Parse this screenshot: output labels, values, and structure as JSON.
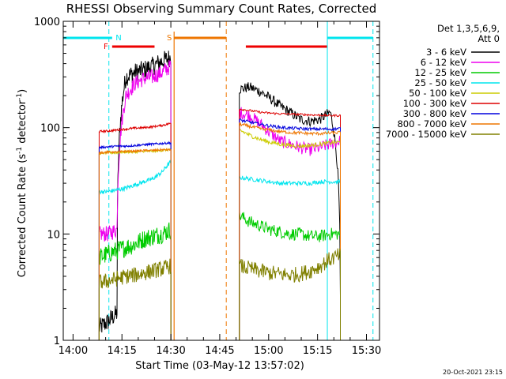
{
  "chart_data": {
    "type": "line",
    "title": "RHESSI Observing Summary Count Rates, Corrected",
    "xlabel": "Start Time (03-May-12 13:57:02)",
    "ylabel_main": "Corrected Count Rate (s",
    "ylabel_sup1": "-1",
    "ylabel_mid": " detector",
    "ylabel_sup2": "-1",
    "ylabel_end": ")",
    "yscale": "log",
    "ylim": [
      1,
      1000
    ],
    "xlim": [
      "13:57",
      "15:34"
    ],
    "x_ticks": [
      "14:00",
      "14:15",
      "14:30",
      "14:45",
      "15:00",
      "15:15",
      "15:30"
    ],
    "y_ticks": [
      "1",
      "10",
      "100",
      "1000"
    ],
    "legend_header": [
      "Det 1,3,5,6,9,",
      "Att 0"
    ],
    "legend_placement": "right",
    "timestamp": "20-Oct-2021 23:15",
    "flags": [
      {
        "label": "N",
        "color": "#00e5ee",
        "start": "13:57",
        "end": "14:12",
        "row": "upper"
      },
      {
        "label": "F",
        "color": "#ee0000",
        "start": "14:12",
        "end": "14:25",
        "row": "lower"
      },
      {
        "label": "S",
        "color": "#ee7600",
        "start": "14:31",
        "end": "14:47",
        "row": "upper"
      },
      {
        "label": "",
        "color": "#ee0000",
        "start": "14:53",
        "end": "15:18",
        "row": "lower"
      },
      {
        "label": "",
        "color": "#00e5ee",
        "start": "15:18",
        "end": "15:32",
        "row": "upper"
      }
    ],
    "vlines": [
      {
        "t": "14:11",
        "color": "#00e5ee",
        "style": "dashed"
      },
      {
        "t": "14:47",
        "color": "#ee7600",
        "style": "dashed"
      },
      {
        "t": "15:32",
        "color": "#00e5ee",
        "style": "dashed"
      },
      {
        "t": "15:18",
        "color": "#00e5ee",
        "style": "solid"
      }
    ],
    "series": [
      {
        "name": "3 - 6 keV",
        "color": "#000000",
        "seg1": {
          "start": "14:08",
          "end": "14:30",
          "levels": [
            1.3,
            1.5,
            1.8,
            300,
            330,
            350,
            380,
            420,
            460
          ],
          "jitter": 0.18
        },
        "seg2": {
          "start": "14:51",
          "end": "15:22",
          "levels": [
            230,
            240,
            220,
            190,
            160,
            140,
            120,
            115,
            120,
            140,
            2.5
          ],
          "jitter": 0.1
        }
      },
      {
        "name": "6 - 12 keV",
        "color": "#ee00ee",
        "seg1": {
          "start": "14:08",
          "end": "14:30",
          "levels": [
            10,
            10,
            11,
            200,
            260,
            290,
            300,
            330,
            380
          ],
          "jitter": 0.15
        },
        "seg2": {
          "start": "14:51",
          "end": "15:22",
          "levels": [
            140,
            130,
            110,
            90,
            75,
            70,
            65,
            62,
            65,
            70,
            75
          ],
          "jitter": 0.12
        }
      },
      {
        "name": "12 - 25 keV",
        "color": "#00cc00",
        "seg1": {
          "start": "14:08",
          "end": "14:30",
          "levels": [
            6,
            6.5,
            7,
            7.5,
            8,
            9,
            9.5,
            10,
            11
          ],
          "jitter": 0.18
        },
        "seg2": {
          "start": "14:51",
          "end": "15:22",
          "levels": [
            15,
            13,
            12,
            11,
            10.5,
            10,
            10,
            9.5,
            9.5,
            10,
            10
          ],
          "jitter": 0.12
        }
      },
      {
        "name": "25 - 50 keV",
        "color": "#00e5ee",
        "seg1": {
          "start": "14:08",
          "end": "14:30",
          "levels": [
            25,
            25,
            26,
            27,
            29,
            31,
            33,
            38,
            48
          ],
          "jitter": 0.04
        },
        "seg2": {
          "start": "14:51",
          "end": "15:22",
          "levels": [
            34,
            33,
            32,
            31,
            30,
            30,
            30,
            30,
            31,
            31,
            31
          ],
          "jitter": 0.04
        }
      },
      {
        "name": "50 - 100 keV",
        "color": "#cccc00",
        "seg1": {
          "start": "14:08",
          "end": "14:30",
          "levels": [
            57,
            58,
            58,
            59,
            59,
            60,
            60,
            61,
            62
          ],
          "jitter": 0.02
        },
        "seg2": {
          "start": "14:51",
          "end": "15:22",
          "levels": [
            95,
            85,
            78,
            73,
            70,
            68,
            67,
            68,
            70,
            72,
            73
          ],
          "jitter": 0.04
        }
      },
      {
        "name": "100 - 300 keV",
        "color": "#dd0000",
        "seg1": {
          "start": "14:08",
          "end": "14:30",
          "levels": [
            92,
            93,
            95,
            97,
            99,
            100,
            102,
            105,
            110
          ],
          "jitter": 0.02
        },
        "seg2": {
          "start": "14:51",
          "end": "15:22",
          "levels": [
            150,
            145,
            140,
            137,
            135,
            134,
            133,
            132,
            131,
            130,
            130
          ],
          "jitter": 0.02
        }
      },
      {
        "name": "300 - 800 keV",
        "color": "#0000dd",
        "seg1": {
          "start": "14:08",
          "end": "14:30",
          "levels": [
            65,
            66,
            67,
            67,
            68,
            69,
            70,
            71,
            72
          ],
          "jitter": 0.02
        },
        "seg2": {
          "start": "14:51",
          "end": "15:22",
          "levels": [
            118,
            113,
            108,
            104,
            101,
            99,
            98,
            97,
            97,
            97,
            98
          ],
          "jitter": 0.03
        }
      },
      {
        "name": "800 - 7000 keV",
        "color": "#ee7600",
        "seg1": {
          "start": "14:08",
          "end": "14:30",
          "levels": [
            58,
            59,
            59,
            60,
            60,
            61,
            61,
            62,
            62
          ],
          "jitter": 0.02
        },
        "seg2": {
          "start": "14:51",
          "end": "15:22",
          "levels": [
            108,
            103,
            98,
            95,
            92,
            90,
            89,
            88,
            88,
            89,
            90
          ],
          "jitter": 0.03
        }
      },
      {
        "name": "7000 - 15000 keV",
        "color": "#808000",
        "seg1": {
          "start": "14:08",
          "end": "14:30",
          "levels": [
            3.5,
            3.6,
            3.8,
            4,
            4.1,
            4.3,
            4.5,
            4.7,
            5
          ],
          "jitter": 0.15
        },
        "seg2": {
          "start": "14:51",
          "end": "15:22",
          "levels": [
            5,
            4.7,
            4.5,
            4.3,
            4.2,
            4.1,
            4.2,
            4.5,
            5,
            5.8,
            6.3
          ],
          "jitter": 0.15
        }
      }
    ]
  }
}
